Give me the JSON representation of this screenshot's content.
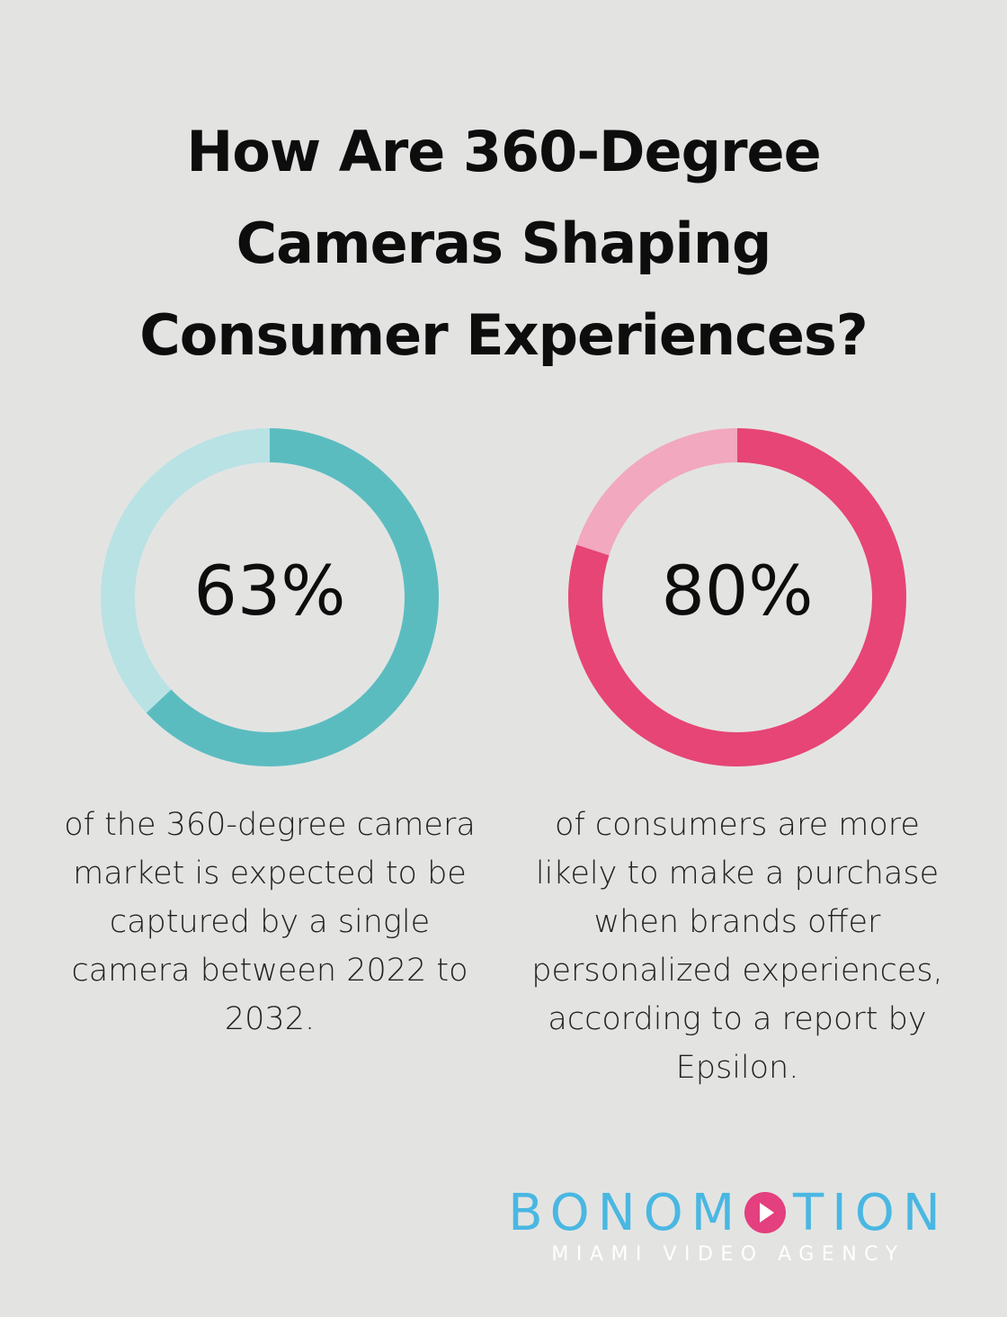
{
  "title_lines": [
    "How Are 360-Degree",
    "Cameras Shaping",
    "Consumer Experiences?"
  ],
  "chart_data": [
    {
      "type": "pie",
      "value": 63,
      "label": "63%",
      "colors": {
        "fill": "#5bbcc0",
        "track": "#b9e2e4"
      },
      "description_lines": [
        "of the 360-degree camera",
        "market is expected to be",
        "captured by a single",
        "camera between 2022 to",
        "2032."
      ]
    },
    {
      "type": "pie",
      "value": 80,
      "label": "80%",
      "colors": {
        "fill": "#e64575",
        "track": "#f2a8bf"
      },
      "description_lines": [
        "of consumers are more",
        "likely to make a purchase",
        "when brands offer",
        "personalized experiences,",
        "according to a report by",
        "Epsilon."
      ]
    }
  ],
  "logo": {
    "word_before": "BONOM",
    "word_after": "TION",
    "tagline": "MIAMI VIDEO AGENCY",
    "colors": {
      "word": "#4ab7e2",
      "accent": "#e43f7e",
      "tagline": "#ffffff"
    }
  }
}
